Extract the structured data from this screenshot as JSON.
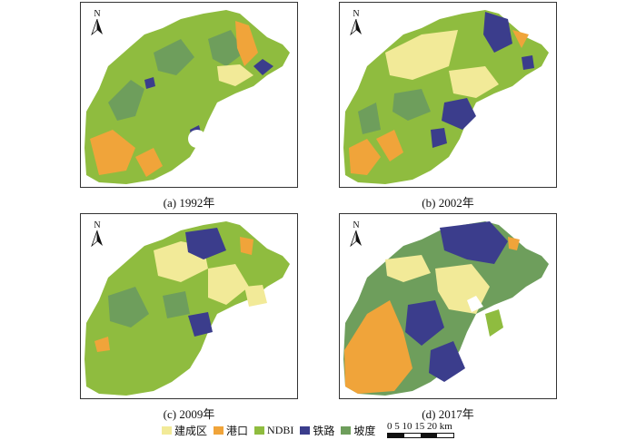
{
  "panels": [
    {
      "caption": "(a) 1992年",
      "north": "N"
    },
    {
      "caption": "(b) 2002年",
      "north": "N"
    },
    {
      "caption": "(c) 2009年",
      "north": "N"
    },
    {
      "caption": "(d) 2017年",
      "north": "N"
    }
  ],
  "legend": {
    "items": [
      {
        "label": "建成区",
        "color": "#f2ea98"
      },
      {
        "label": "港口",
        "color": "#f0a43a"
      },
      {
        "label": "NDBI",
        "color": "#8fbc3f"
      },
      {
        "label": "铁路",
        "color": "#3b3d8c"
      },
      {
        "label": "坡度",
        "color": "#6e9e5c"
      }
    ]
  },
  "scalebar": {
    "label": "0 5 10 15 20 km"
  }
}
